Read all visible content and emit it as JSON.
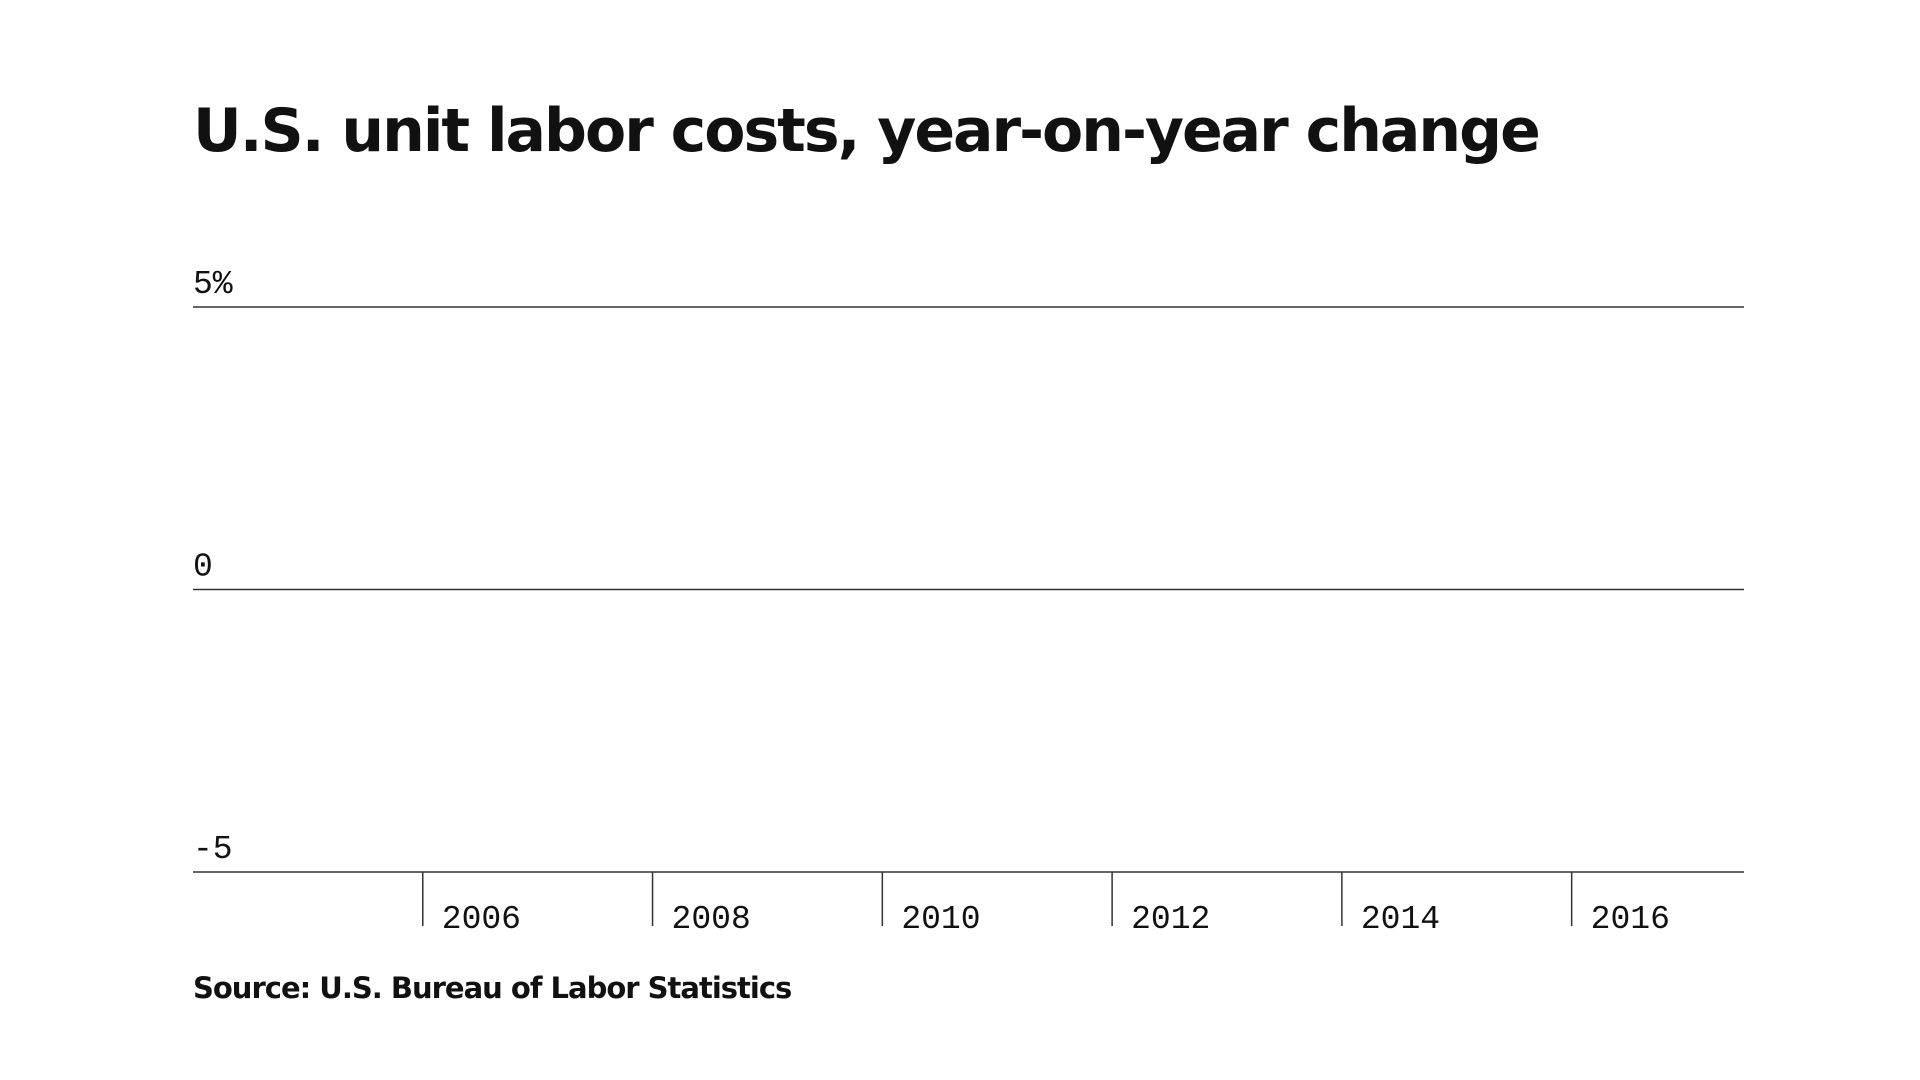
{
  "chart_data": {
    "type": "line",
    "title": "U.S. unit labor costs, year-on-year change",
    "xlabel": "",
    "ylabel": "",
    "x_ticks": [
      "2006",
      "2008",
      "2010",
      "2012",
      "2014",
      "2016"
    ],
    "y_ticks": [
      {
        "value": 5,
        "label": "5%"
      },
      {
        "value": 0,
        "label": "0"
      },
      {
        "value": -5,
        "label": "-5"
      }
    ],
    "ylim": [
      -5,
      5
    ],
    "xlim": [
      2004,
      2017.5
    ],
    "grid": true,
    "series": []
  },
  "source": "Source: U.S. Bureau of Labor Statistics"
}
